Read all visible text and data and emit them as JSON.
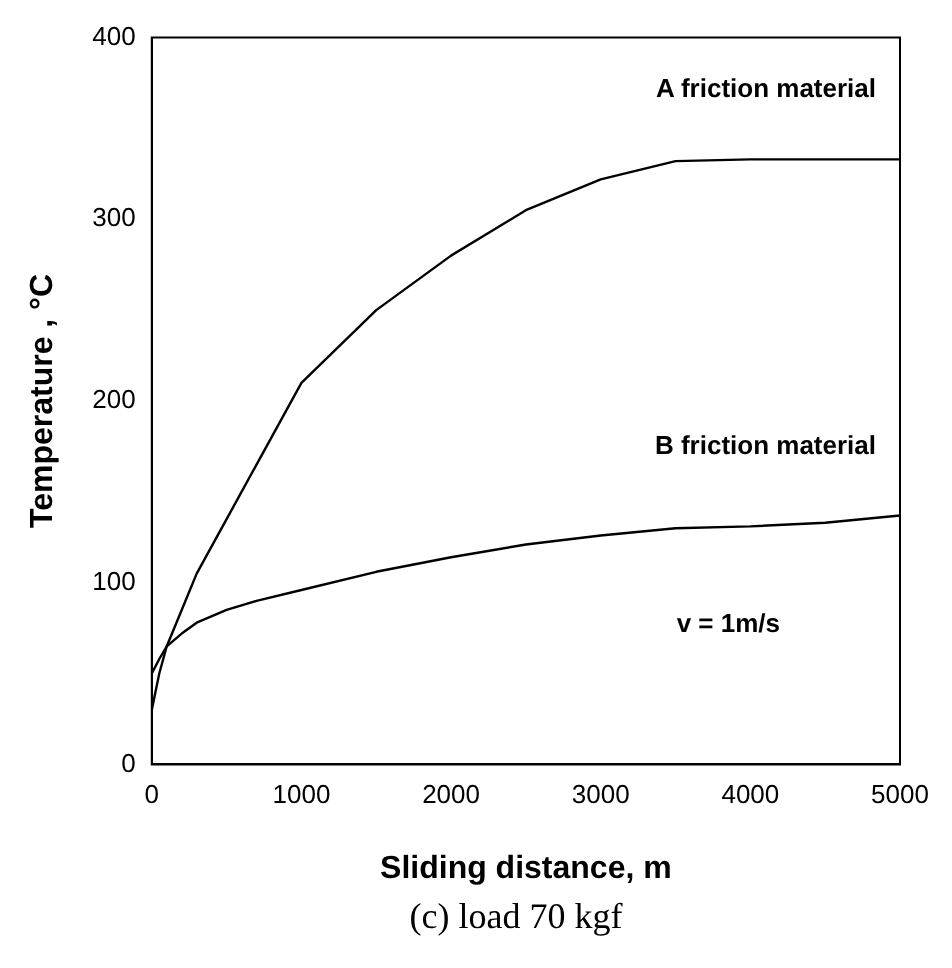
{
  "chart_data": {
    "type": "line",
    "xlabel": "Sliding distance, m",
    "ylabel": "Temperature , °C",
    "x": [
      0,
      50,
      100,
      200,
      300,
      500,
      700,
      1000,
      1500,
      2000,
      2500,
      3000,
      3500,
      4000,
      4500,
      5000
    ],
    "series": [
      {
        "name": "A friction material",
        "color": "#000000",
        "values": [
          30,
          50,
          65,
          85,
          105,
          135,
          165,
          210,
          250,
          280,
          305,
          322,
          332,
          333,
          333,
          333
        ]
      },
      {
        "name": "B friction material",
        "color": "#000000",
        "values": [
          50,
          58,
          65,
          72,
          78,
          85,
          90,
          96,
          106,
          114,
          121,
          126,
          130,
          131,
          133,
          137
        ]
      }
    ],
    "xlim": [
      0,
      5000
    ],
    "xticks": [
      0,
      1000,
      2000,
      3000,
      4000,
      5000
    ],
    "ylim": [
      0,
      400
    ],
    "yticks": [
      0,
      100,
      200,
      300,
      400
    ],
    "grid": false,
    "legend": false,
    "marker": "none",
    "line_style": "solid",
    "annotations": [
      "v = 1m/s",
      "(c) load 70 kgf"
    ]
  }
}
